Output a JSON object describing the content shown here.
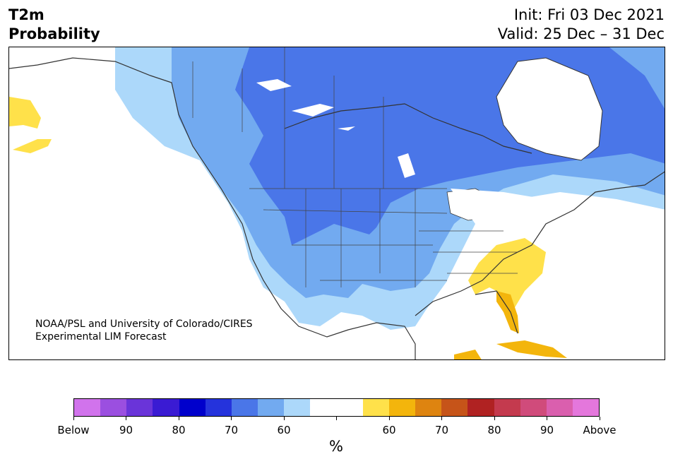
{
  "header": {
    "title_line1": "T2m",
    "title_line2": "Probability",
    "init": "Init: Fri 03 Dec 2021",
    "valid": "Valid: 25 Dec – 31 Dec"
  },
  "map": {
    "credit_line1": "NOAA/PSL and University of Colorado/CIRES",
    "credit_line2": "Experimental LIM Forecast",
    "region": "North America",
    "below_colors": [
      "#4a76e8",
      "#72aaf0",
      "#acd8fa"
    ],
    "above_colors": [
      "#ffe14a",
      "#f3b50c"
    ]
  },
  "colorbar": {
    "unit": "%",
    "colors": [
      "#d173ec",
      "#9b4fe0",
      "#6a34d9",
      "#3a1bd3",
      "#0000cc",
      "#2533dc",
      "#4a76e8",
      "#72aaf0",
      "#acd8fa",
      "#ffffff",
      "#ffffff",
      "#ffe14a",
      "#f3b50c",
      "#de8410",
      "#c65419",
      "#b02222",
      "#c43a4e",
      "#d04b7b",
      "#da5fae",
      "#e477dc"
    ],
    "labels": [
      "Below",
      "90",
      "80",
      "70",
      "60",
      "",
      "60",
      "70",
      "80",
      "90",
      "Above"
    ]
  }
}
